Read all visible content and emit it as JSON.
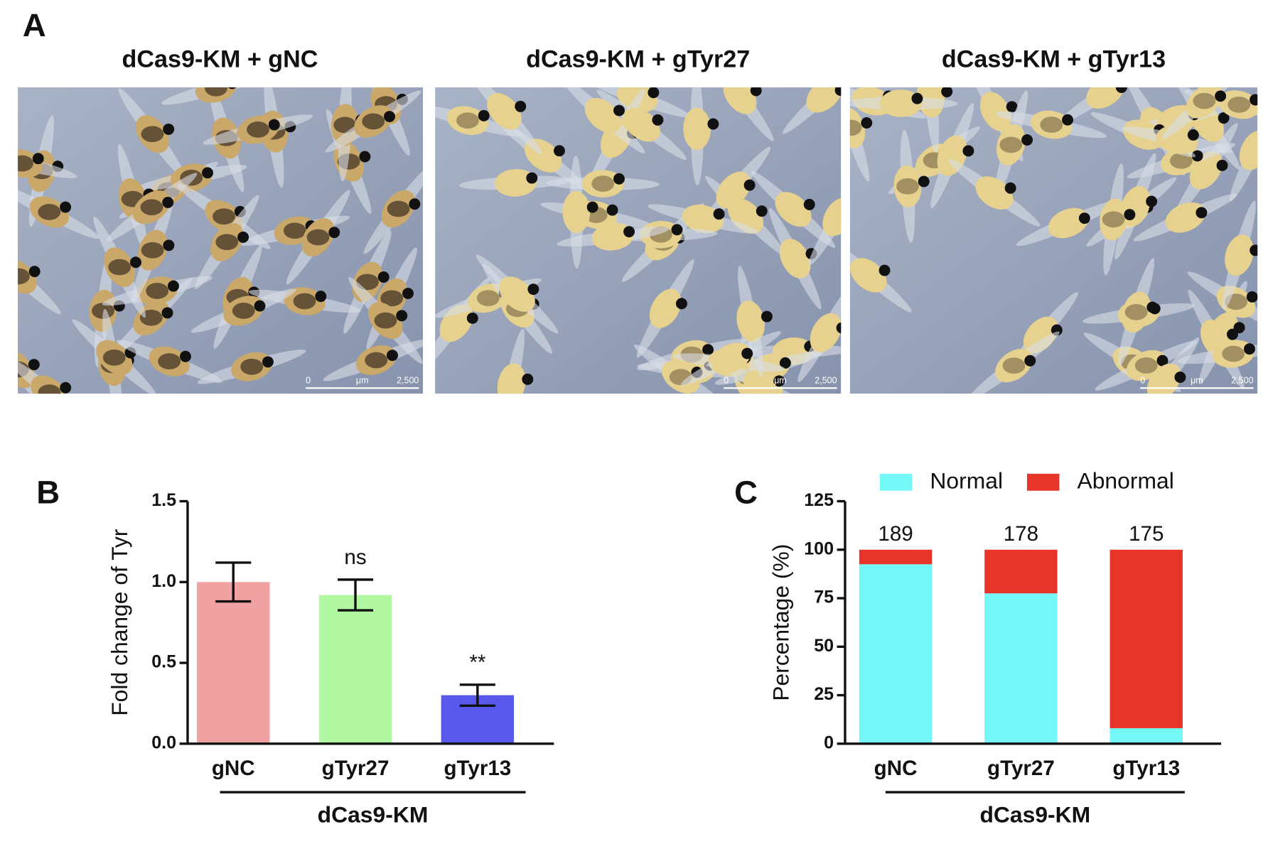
{
  "panel_a": {
    "label": "A",
    "titles": [
      "dCas9-KM + gNC",
      "dCas9-KM + gTyr27",
      "dCas9-KM + gTyr13"
    ],
    "scale_bar": {
      "start": "0",
      "unit": "μm",
      "end": "2,500"
    }
  },
  "chart_data": [
    {
      "type": "bar",
      "panel": "B",
      "ylabel": "Fold change of Tyr",
      "group_label": "dCas9-KM",
      "categories": [
        "gNC",
        "gTyr27",
        "gTyr13"
      ],
      "values": [
        1.0,
        0.92,
        0.3
      ],
      "errors": [
        0.12,
        0.095,
        0.065
      ],
      "colors": [
        "#f0a2a2",
        "#b2f7a2",
        "#5858ec"
      ],
      "annotations": [
        {
          "x": "gTyr27",
          "text": "ns"
        },
        {
          "x": "gTyr13",
          "text": "**"
        }
      ],
      "ylim": [
        0,
        1.5
      ],
      "yticks": [
        {
          "value": 0,
          "label": "0.0"
        },
        {
          "value": 0.5,
          "label": "0.5"
        },
        {
          "value": 1,
          "label": "1.0"
        },
        {
          "value": 1.5,
          "label": "1.5"
        }
      ]
    },
    {
      "type": "stacked_bar",
      "panel": "C",
      "ylabel": "Percentage (%)",
      "group_label": "dCas9-KM",
      "categories": [
        "gNC",
        "gTyr27",
        "gTyr13"
      ],
      "series": [
        {
          "name": "Normal",
          "color": "#74f7f7",
          "values": [
            92.5,
            77.5,
            8
          ]
        },
        {
          "name": "Abnormal",
          "color": "#e8352a",
          "values": [
            7.5,
            22.5,
            92
          ]
        }
      ],
      "n": [
        189,
        178,
        175
      ],
      "legend": "top",
      "ylim": [
        0,
        125
      ],
      "yticks": [
        0,
        25,
        50,
        75,
        100,
        125
      ]
    }
  ]
}
